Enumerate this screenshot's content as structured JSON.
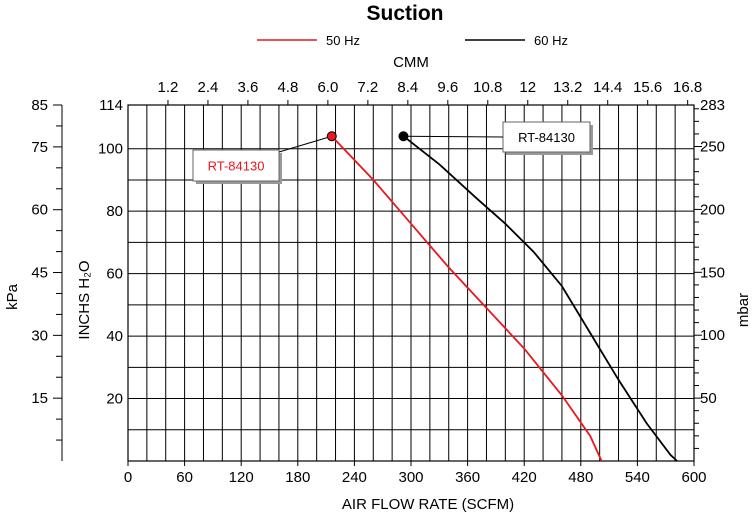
{
  "chart_data": {
    "type": "line",
    "title": "Suction",
    "xlabel": "AIR FLOW RATE (SCFM)",
    "x2label": "CMM",
    "ylabel_left_outer": "kPa",
    "ylabel_left_inner": "INCHS H₂O",
    "ylabel_right": "mbar",
    "xlim": [
      0,
      600
    ],
    "ylim": [
      0,
      114
    ],
    "x_ticks": [
      0,
      60,
      120,
      180,
      240,
      300,
      360,
      420,
      480,
      540,
      600
    ],
    "x_tick_labels": [
      "0",
      "60",
      "120",
      "180",
      "240",
      "300",
      "360",
      "420",
      "480",
      "540",
      "600"
    ],
    "x2_ticks": [
      1.2,
      2.4,
      3.6,
      4.8,
      6.0,
      7.2,
      8.4,
      9.6,
      10.8,
      12,
      13.2,
      14.4,
      15.6,
      16.8
    ],
    "x2_tick_labels": [
      "1.2",
      "2.4",
      "3.6",
      "4.8",
      "6.0",
      "7.2",
      "8.4",
      "9.6",
      "10.8",
      "12",
      "13.2",
      "14.4",
      "15.6",
      "16.8"
    ],
    "y_ticks": [
      20,
      40,
      60,
      80,
      100,
      114
    ],
    "y_tick_labels": [
      "20",
      "40",
      "60",
      "80",
      "100",
      "114"
    ],
    "y_kpa_ticks": [
      15,
      30,
      45,
      60,
      75,
      85
    ],
    "y_kpa_tick_labels": [
      "15",
      "30",
      "45",
      "60",
      "75",
      "85"
    ],
    "y_mbar_ticks": [
      50,
      100,
      150,
      200,
      250,
      283
    ],
    "y_mbar_tick_labels": [
      "50",
      "100",
      "150",
      "200",
      "250",
      "283"
    ],
    "grid": true,
    "legend_position": "top",
    "series": [
      {
        "name": "50 Hz",
        "color": "#e8181e",
        "x": [
          216,
          260,
          300,
          340,
          380,
          420,
          460,
          490,
          502
        ],
        "y": [
          104,
          90,
          76,
          62,
          49,
          36,
          21,
          8,
          0
        ],
        "label": "RT-84130"
      },
      {
        "name": "60 Hz",
        "color": "#000000",
        "x": [
          292,
          330,
          370,
          400,
          430,
          460,
          490,
          520,
          550,
          575,
          582
        ],
        "y": [
          104,
          95,
          84,
          76,
          67,
          56,
          41,
          26,
          12,
          2,
          0
        ],
        "label": "RT-84130"
      }
    ]
  }
}
